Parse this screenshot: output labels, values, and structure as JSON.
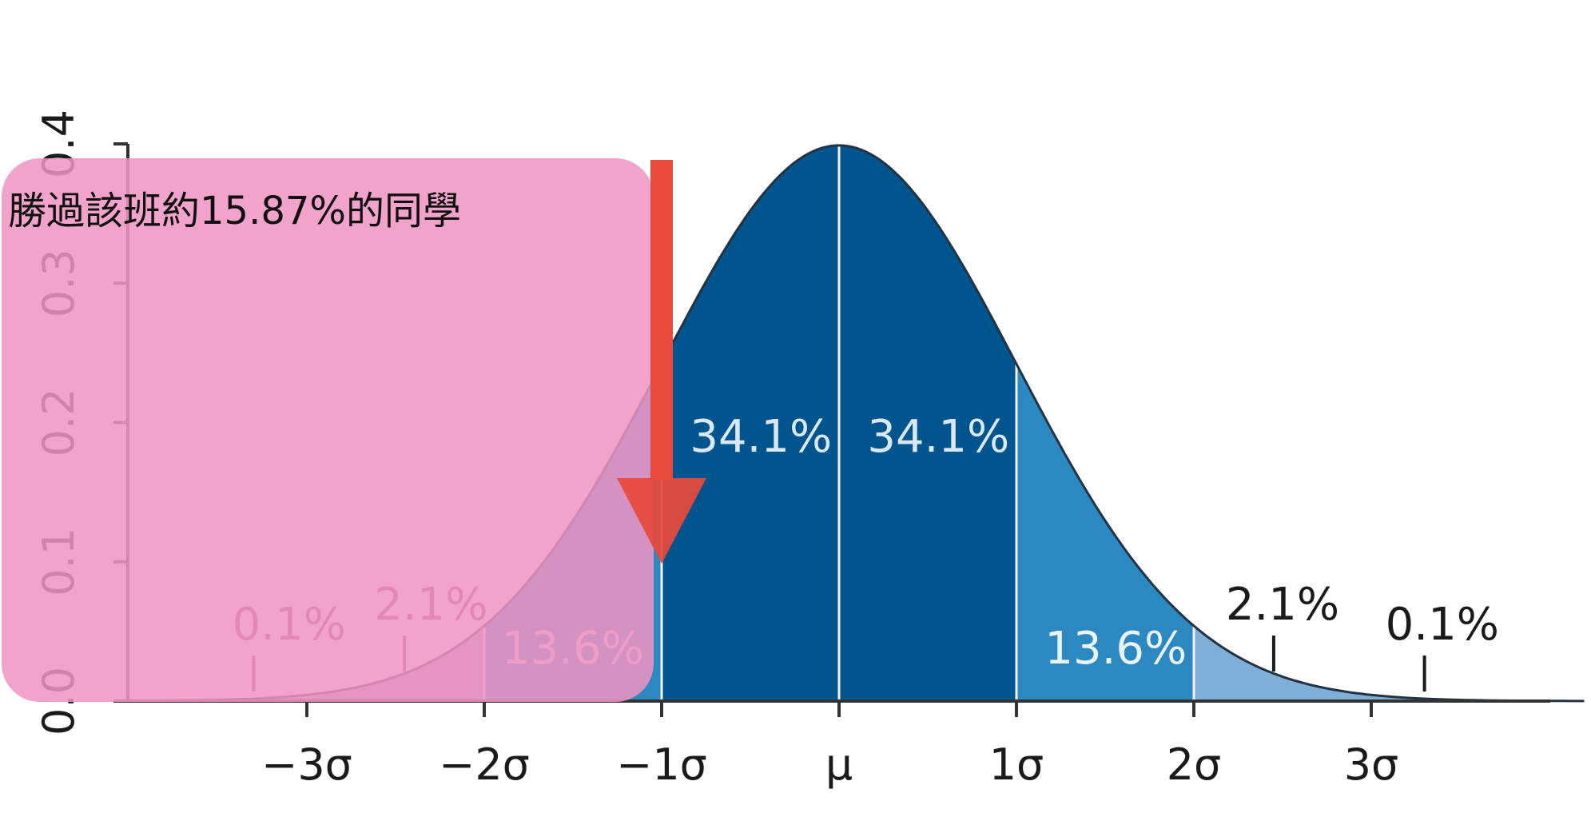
{
  "chart_data": {
    "type": "area",
    "title": "",
    "xlabel": "",
    "ylabel": "",
    "distribution": "normal",
    "x_range_sigma": [
      -4,
      4.2
    ],
    "ylim": [
      0,
      0.4
    ],
    "y_ticks": [
      "0.0",
      "0.1",
      "0.2",
      "0.3",
      "0.4"
    ],
    "y_tick_values": [
      0,
      0.1,
      0.2,
      0.3,
      0.4
    ],
    "x_ticks": [
      "−3σ",
      "−2σ",
      "−1σ",
      "μ",
      "1σ",
      "2σ",
      "3σ"
    ],
    "x_tick_values": [
      -3,
      -2,
      -1,
      0,
      1,
      2,
      3
    ],
    "boundaries_sigma": [
      -2,
      -1,
      0,
      1,
      2
    ],
    "regions": [
      {
        "from": -4.0,
        "to": -2,
        "color": "#ab9ac8",
        "label": "2.1%"
      },
      {
        "from": -2,
        "to": -1,
        "color": "#2b88c1",
        "label": "13.6%"
      },
      {
        "from": -1,
        "to": 0,
        "color": "#00558e",
        "label": "34.1%"
      },
      {
        "from": 0,
        "to": 1,
        "color": "#00558e",
        "label": "34.1%"
      },
      {
        "from": 1,
        "to": 2,
        "color": "#2b88c1",
        "label": "13.6%"
      },
      {
        "from": 2,
        "to": 4.2,
        "color": "#7faed6",
        "label": "2.1%"
      }
    ],
    "outer_labels": [
      {
        "text": "0.1%",
        "x_sigma": -3.1,
        "pointer_sigma": -3.3
      },
      {
        "text": "2.1%",
        "x_sigma": -2.3,
        "pointer_sigma": -2.45
      },
      {
        "text": "2.1%",
        "x_sigma": 2.5,
        "pointer_sigma": 2.45
      },
      {
        "text": "0.1%",
        "x_sigma": 3.4,
        "pointer_sigma": 3.3
      }
    ],
    "annotation": {
      "text": "勝過該班約15.87%的同學",
      "covers_from_sigma": -4.0,
      "covers_to_sigma": -1,
      "overlay_color": "#f094c3",
      "arrow_color": "#e84a3c",
      "arrow_target_sigma": -1
    },
    "colors": {
      "dark_band": "#00558e",
      "mid_band": "#2b88c1",
      "light_band": "#7faed6",
      "axis": "#333333",
      "curve": "#223344",
      "divider": "#f2f2f2"
    }
  }
}
